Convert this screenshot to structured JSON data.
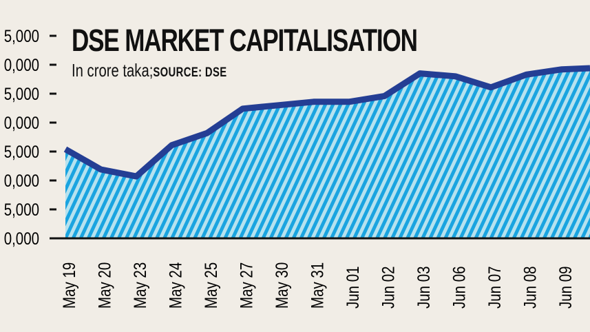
{
  "chart_data": {
    "type": "area",
    "title": "DSE MARKET CAPITALISATION",
    "subtitle": "In crore taka;",
    "source": "SOURCE: DSE",
    "xlabel": "",
    "ylabel": "",
    "y_tick_labels_visible": [
      "5,000",
      "0,000",
      "5,000",
      "0,000",
      "5,000",
      "0,000",
      "5,000",
      "0,000"
    ],
    "y_note": "Y-axis labels are cropped at the left edge; values below are in axis units relative to the lowest visible tick (ticks every 5,000).",
    "ylim_relative": [
      0,
      35000
    ],
    "categories": [
      "May 19",
      "May 20",
      "May 23",
      "May 24",
      "May 25",
      "May 27",
      "May 30",
      "May 31",
      "Jun 01",
      "Jun 02",
      "Jun 03",
      "Jun 06",
      "Jun 07",
      "Jun 08",
      "Jun 09"
    ],
    "values_relative": [
      15400,
      11900,
      10700,
      16100,
      18200,
      22400,
      23000,
      23600,
      23600,
      24600,
      28500,
      28000,
      26100,
      28300,
      29200
    ],
    "trailing_value_relative": 29400,
    "grid": false,
    "legend": "none",
    "colors": {
      "line": "#243e94",
      "stripe_dark": "#1aa4e0",
      "stripe_light": "#b6e2ef",
      "background": "#f1ede6",
      "axis": "#111111"
    }
  }
}
